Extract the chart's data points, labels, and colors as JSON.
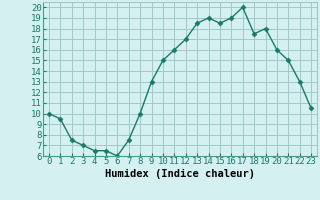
{
  "x": [
    0,
    1,
    2,
    3,
    4,
    5,
    6,
    7,
    8,
    9,
    10,
    11,
    12,
    13,
    14,
    15,
    16,
    17,
    18,
    19,
    20,
    21,
    22,
    23
  ],
  "y": [
    10,
    9.5,
    7.5,
    7.0,
    6.5,
    6.5,
    6.0,
    7.5,
    10.0,
    13.0,
    15.0,
    16.0,
    17.0,
    18.5,
    19.0,
    18.5,
    19.0,
    20.0,
    17.5,
    18.0,
    16.0,
    15.0,
    13.0,
    10.5
  ],
  "line_color": "#1a7a6a",
  "marker_color": "#1a7a6a",
  "background_color": "#d4f0f0",
  "grid_color": "#a0c8c8",
  "xlabel": "Humidex (Indice chaleur)",
  "ylabel": "",
  "title": "",
  "xlim": [
    -0.5,
    23.5
  ],
  "ylim": [
    6,
    20.5
  ],
  "yticks": [
    6,
    7,
    8,
    9,
    10,
    11,
    12,
    13,
    14,
    15,
    16,
    17,
    18,
    19,
    20
  ],
  "xticks": [
    0,
    1,
    2,
    3,
    4,
    5,
    6,
    7,
    8,
    9,
    10,
    11,
    12,
    13,
    14,
    15,
    16,
    17,
    18,
    19,
    20,
    21,
    22,
    23
  ],
  "tick_fontsize": 6.5,
  "xlabel_fontsize": 7.5,
  "marker_size": 2.5,
  "line_width": 1.0
}
